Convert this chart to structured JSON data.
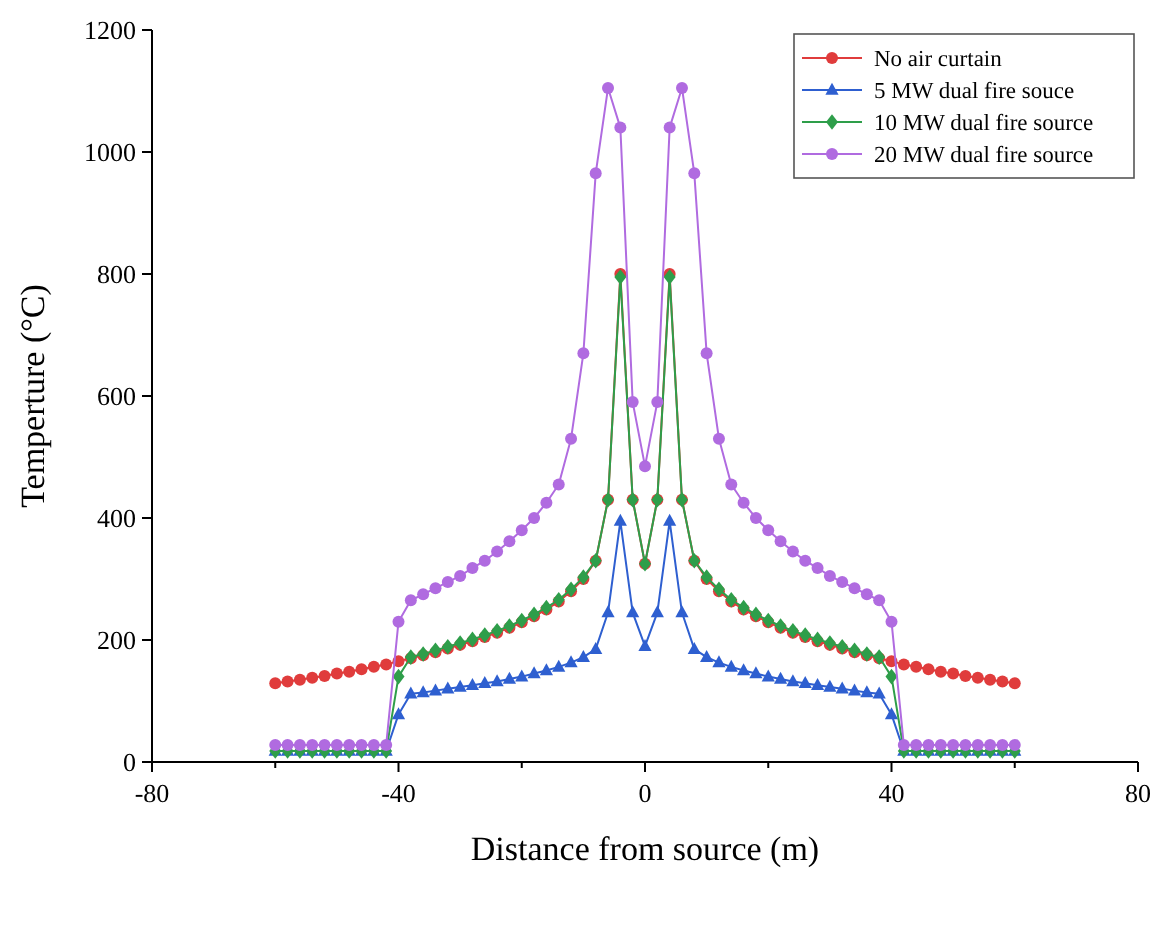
{
  "chart_data": {
    "type": "line",
    "xlabel": "Distance from source (m)",
    "ylabel": "Temperture (°C)",
    "x": [
      -60,
      -58,
      -56,
      -54,
      -52,
      -50,
      -48,
      -46,
      -44,
      -42,
      -40,
      -38,
      -36,
      -34,
      -32,
      -30,
      -28,
      -26,
      -24,
      -22,
      -20,
      -18,
      -16,
      -14,
      -12,
      -10,
      -8,
      -6,
      -4,
      -2,
      0,
      2,
      4,
      6,
      8,
      10,
      12,
      14,
      16,
      18,
      20,
      22,
      24,
      26,
      28,
      30,
      32,
      34,
      36,
      38,
      40,
      42,
      44,
      46,
      48,
      50,
      52,
      54,
      56,
      58,
      60
    ],
    "xlim": [
      -80,
      80
    ],
    "xticks": [
      -80,
      {
        "value": -60,
        "label": null
      },
      -40,
      {
        "value": -20,
        "label": null
      },
      0,
      {
        "value": 20,
        "label": null
      },
      40,
      {
        "value": 60,
        "label": null
      },
      80
    ],
    "ylim": [
      0,
      1200
    ],
    "yticks": [
      0,
      200,
      400,
      600,
      800,
      1000,
      1200
    ],
    "grid": false,
    "legend": "top right",
    "series": [
      {
        "name": "No air curtain",
        "color": "#e03c3c",
        "marker": "circle",
        "values": [
          129,
          132,
          135,
          138,
          141,
          145,
          148,
          152,
          156,
          160,
          165,
          170,
          175,
          180,
          186,
          192,
          198,
          205,
          212,
          220,
          229,
          239,
          250,
          263,
          280,
          300,
          330,
          430,
          800,
          430,
          325,
          430,
          800,
          430,
          330,
          300,
          280,
          263,
          250,
          239,
          229,
          220,
          212,
          205,
          198,
          192,
          186,
          180,
          175,
          170,
          165,
          160,
          156,
          152,
          148,
          145,
          141,
          138,
          135,
          132,
          129
        ]
      },
      {
        "name": "5 MW dual fire souce",
        "color": "#2e5fd0",
        "marker": "triangle",
        "values": [
          18,
          18,
          18,
          18,
          18,
          18,
          18,
          18,
          18,
          18,
          78,
          112,
          114,
          117,
          120,
          123,
          126,
          129,
          132,
          136,
          140,
          145,
          150,
          156,
          163,
          172,
          185,
          245,
          395,
          245,
          190,
          245,
          395,
          245,
          185,
          172,
          163,
          156,
          150,
          145,
          140,
          136,
          132,
          129,
          126,
          123,
          120,
          117,
          114,
          112,
          78,
          18,
          18,
          18,
          18,
          18,
          18,
          18,
          18,
          18,
          18
        ]
      },
      {
        "name": "10 MW dual fire source",
        "color": "#2e9e4a",
        "marker": "diamond",
        "values": [
          18,
          18,
          18,
          18,
          18,
          18,
          18,
          18,
          18,
          18,
          140,
          172,
          177,
          183,
          189,
          195,
          201,
          208,
          215,
          223,
          232,
          242,
          253,
          266,
          283,
          303,
          330,
          430,
          795,
          430,
          325,
          430,
          795,
          430,
          330,
          303,
          283,
          266,
          253,
          242,
          232,
          223,
          215,
          208,
          201,
          195,
          189,
          183,
          177,
          172,
          140,
          18,
          18,
          18,
          18,
          18,
          18,
          18,
          18,
          18,
          18
        ]
      },
      {
        "name": "20 MW dual fire source",
        "color": "#b06be0",
        "marker": "circle",
        "values": [
          28,
          28,
          28,
          28,
          28,
          28,
          28,
          28,
          28,
          28,
          230,
          265,
          275,
          285,
          295,
          305,
          318,
          330,
          345,
          362,
          380,
          400,
          425,
          455,
          530,
          670,
          965,
          1105,
          1040,
          590,
          485,
          590,
          1040,
          1105,
          965,
          670,
          530,
          455,
          425,
          400,
          380,
          362,
          345,
          330,
          318,
          305,
          295,
          285,
          275,
          265,
          230,
          28,
          28,
          28,
          28,
          28,
          28,
          28,
          28,
          28,
          28
        ]
      }
    ]
  }
}
